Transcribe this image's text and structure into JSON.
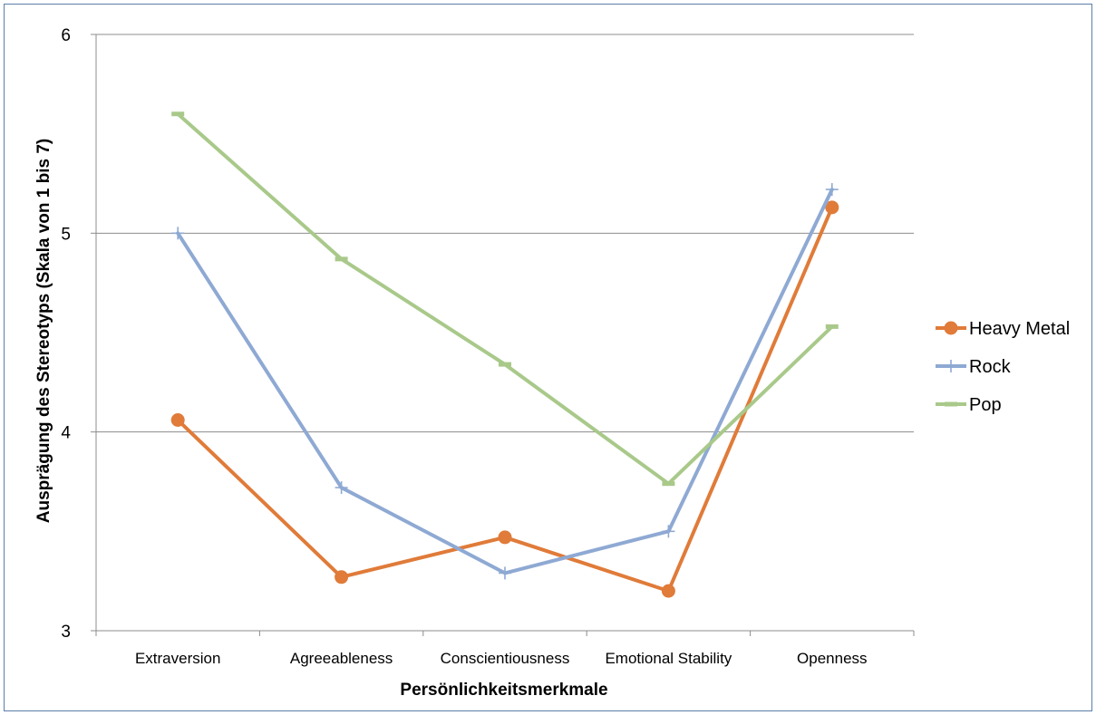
{
  "chart_data": {
    "type": "line",
    "title": "",
    "xlabel": "Persönlichkeitsmerkmale",
    "ylabel": "Ausprägung des Stereotyps (Skala von 1 bis 7)",
    "categories": [
      "Extraversion",
      "Agreeableness",
      "Conscientiousness",
      "Emotional Stability",
      "Openness"
    ],
    "ylim": [
      3,
      6
    ],
    "yticks": [
      "3",
      "4",
      "5",
      "6"
    ],
    "grid": true,
    "legend_position": "right",
    "series": [
      {
        "name": "Heavy Metal",
        "color": "#e07b39",
        "marker": "circle",
        "values": [
          4.06,
          3.27,
          3.47,
          3.2,
          5.13
        ]
      },
      {
        "name": "Rock",
        "color": "#8ea9d3",
        "marker": "plus",
        "values": [
          5.0,
          3.72,
          3.29,
          3.5,
          5.22
        ]
      },
      {
        "name": "Pop",
        "color": "#a9c98a",
        "marker": "dash",
        "values": [
          5.6,
          4.87,
          4.34,
          3.74,
          4.53
        ]
      }
    ]
  }
}
